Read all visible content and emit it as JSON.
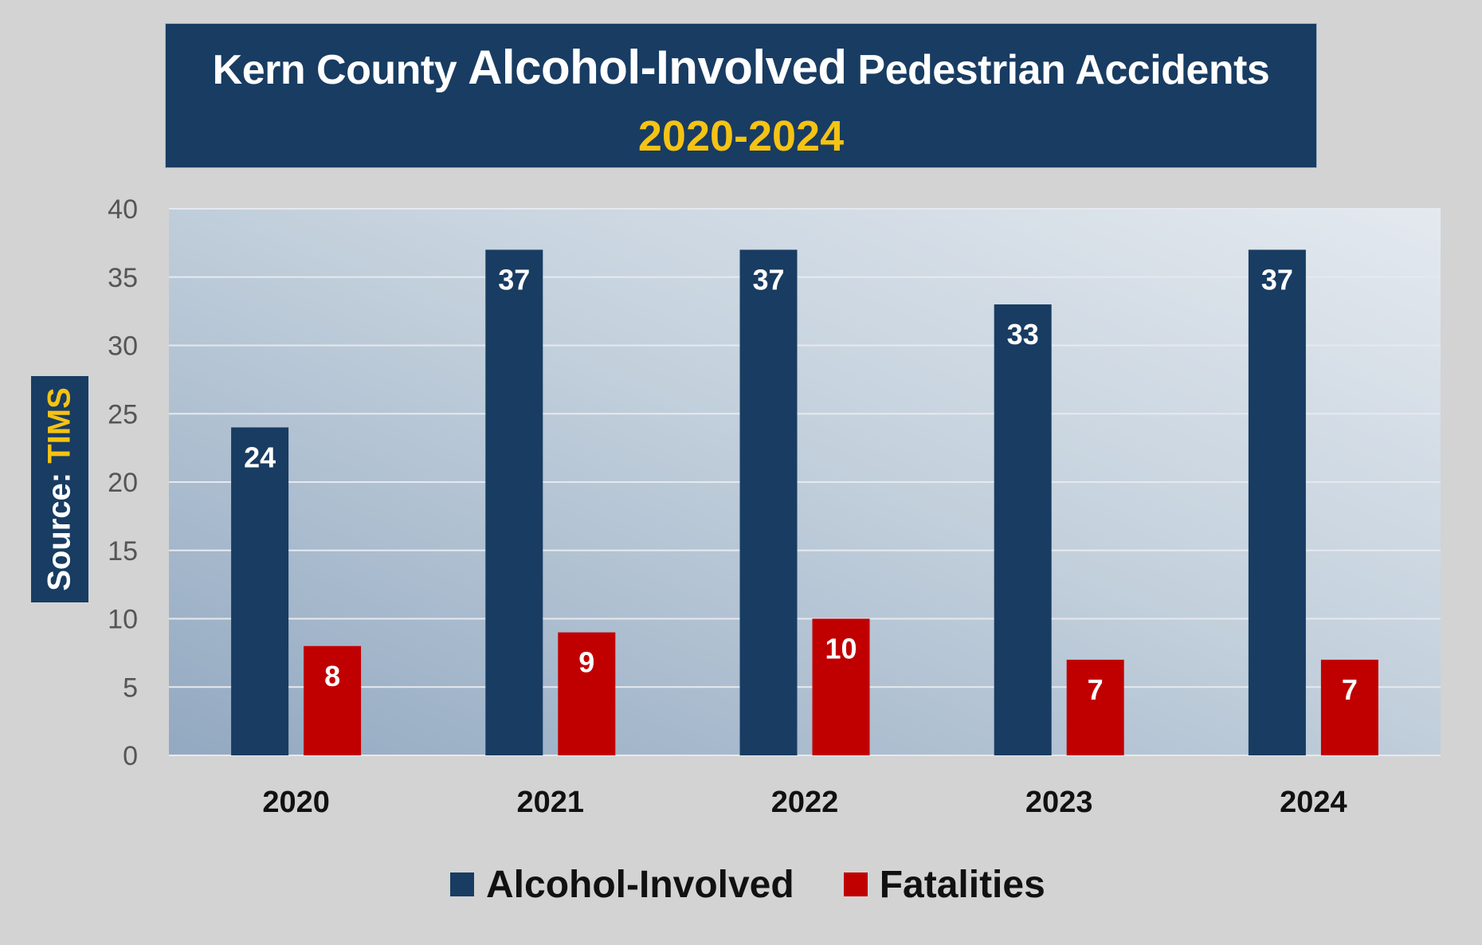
{
  "title": {
    "prefix": "Kern County",
    "emphasis": "Alcohol-Involved",
    "suffix": "Pedestrian Accidents",
    "years": "2020-2024"
  },
  "source": {
    "label": "Source:",
    "name": "TIMS"
  },
  "colors": {
    "navy": "#183c62",
    "red": "#c00000",
    "gold": "#f5c314",
    "background": "#d3d3d3"
  },
  "chart_data": {
    "type": "bar",
    "categories": [
      "2020",
      "2021",
      "2022",
      "2023",
      "2024"
    ],
    "series": [
      {
        "name": "Alcohol-Involved",
        "values": [
          24,
          37,
          37,
          33,
          37
        ],
        "color": "#183c62"
      },
      {
        "name": "Fatalities",
        "values": [
          8,
          9,
          10,
          7,
          7
        ],
        "color": "#c00000"
      }
    ],
    "yticks": [
      0,
      5,
      10,
      15,
      20,
      25,
      30,
      35,
      40
    ],
    "ylim": [
      0,
      40
    ],
    "grid": true,
    "legend": "bottom",
    "data_labels": "inside-top"
  }
}
